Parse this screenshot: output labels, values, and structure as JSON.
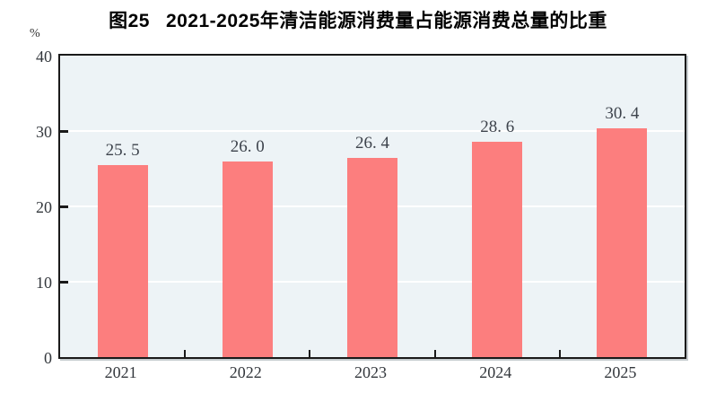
{
  "figure": {
    "label": "图25",
    "title": "2021-2025年清洁能源消费量占能源消费总量的比重"
  },
  "chart_data": {
    "type": "bar",
    "categories": [
      "2021",
      "2022",
      "2023",
      "2024",
      "2025"
    ],
    "values": [
      25.5,
      26.0,
      26.4,
      28.6,
      30.4
    ],
    "value_labels": [
      "25. 5",
      "26. 0",
      "26. 4",
      "28. 6",
      "30. 4"
    ],
    "title": "图25 2021-2025年清洁能源消费量占能源消费总量的比重",
    "xlabel": "",
    "ylabel": "%",
    "ylim": [
      0,
      40
    ],
    "yticks": [
      0,
      10,
      20,
      30,
      40
    ],
    "gridlines": [
      10,
      20,
      30
    ],
    "grid": "horizontal-white",
    "legend": "none",
    "bar_color": "#fc7e7e",
    "plot_background": "#edf3f6",
    "frame_color": "#1a1a1a"
  }
}
